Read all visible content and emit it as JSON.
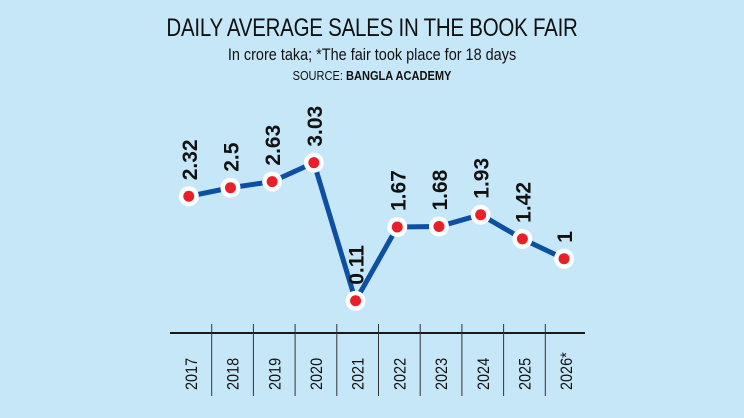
{
  "chart_data": {
    "type": "line",
    "title": "DAILY AVERAGE SALES IN THE BOOK FAIR",
    "subtitle": "In crore taka; *The fair took place for 18 days",
    "source_label": "SOURCE:",
    "source_name": "BANGLA ACADEMY",
    "categories": [
      "2017",
      "2018",
      "2019",
      "2020",
      "2021",
      "2022",
      "2023",
      "2024",
      "2025",
      "2026*"
    ],
    "values": [
      2.32,
      2.5,
      2.63,
      3.03,
      0.11,
      1.67,
      1.68,
      1.93,
      1.42,
      1
    ],
    "value_labels": [
      "2.32",
      "2.5",
      "2.63",
      "3.03",
      "0.11",
      "1.67",
      "1.68",
      "1.93",
      "1.42",
      "1"
    ],
    "xlabel": "",
    "ylabel": "",
    "ylim": [
      0,
      3.1
    ],
    "grid": false,
    "colors": {
      "line": "#0d4fa3",
      "marker": "#e8202a",
      "marker_ring": "#ffffff",
      "background": "#c6e7f8"
    }
  }
}
